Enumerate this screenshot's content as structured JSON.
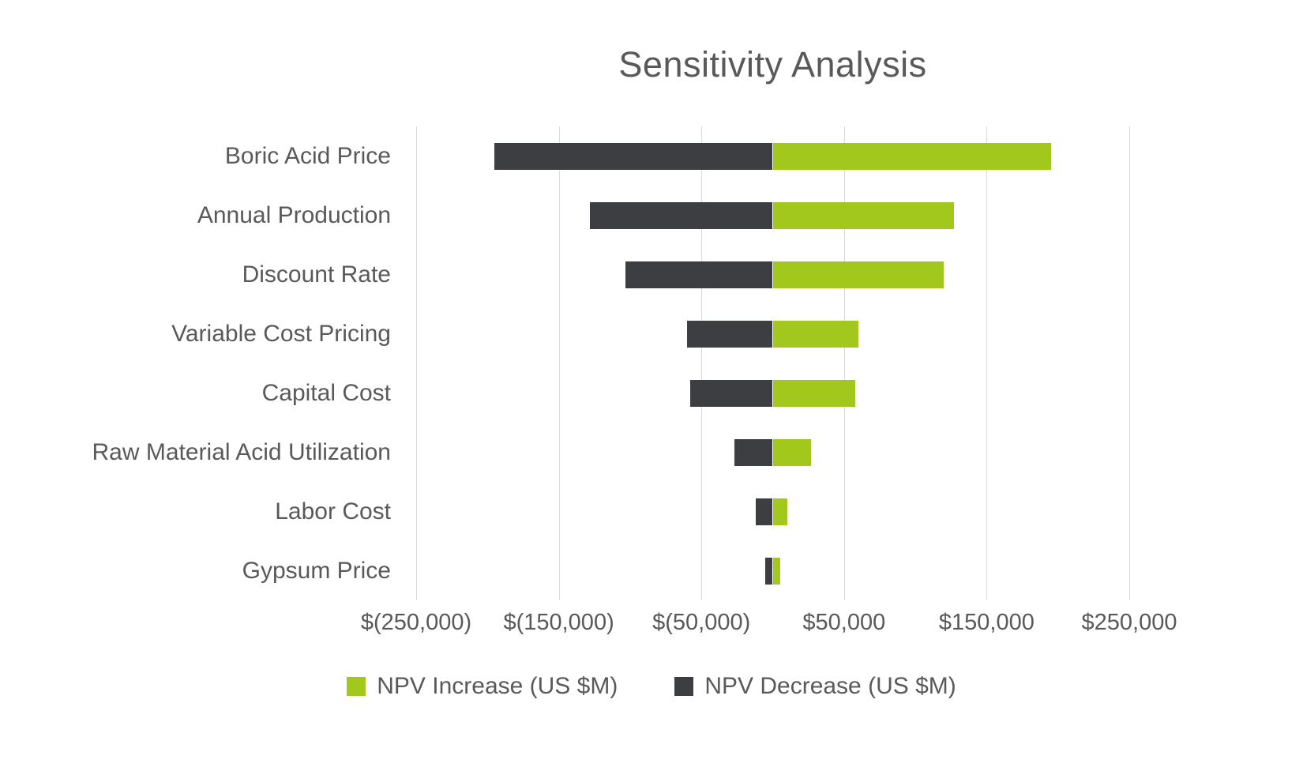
{
  "colors": {
    "increase": "#A2C81E",
    "decrease": "#3C3E42",
    "gridline": "#D9D9D9",
    "text": "#595959",
    "background": "#FFFFFF"
  },
  "legend": {
    "increase_label": "NPV Increase (US $M)",
    "decrease_label": "NPV Decrease (US $M)"
  },
  "chart_data": {
    "type": "bar",
    "orientation": "horizontal",
    "subtype": "tornado-diverging",
    "title": "Sensitivity Analysis",
    "xlabel": "",
    "ylabel": "",
    "grid": true,
    "legend_position": "bottom",
    "categories": [
      "Boric Acid Price",
      "Annual Production",
      "Discount Rate",
      "Variable Cost Pricing",
      "Capital Cost",
      "Raw Material Acid Utilization",
      "Labor Cost",
      "Gypsum Price"
    ],
    "series": [
      {
        "name": "NPV Increase (US $M)",
        "color": "#A2C81E",
        "values": [
          195000,
          127000,
          120000,
          60000,
          58000,
          27000,
          10000,
          5000
        ]
      },
      {
        "name": "NPV Decrease (US $M)",
        "color": "#3C3E42",
        "values": [
          -195000,
          -128000,
          -103000,
          -60000,
          -58000,
          -27000,
          -12000,
          -5000
        ]
      }
    ],
    "x_axis": {
      "min": -250000,
      "max": 250000,
      "tick_interval": 100000,
      "ticks": [
        {
          "value": -250000,
          "label": "$(250,000)"
        },
        {
          "value": -150000,
          "label": "$(150,000)"
        },
        {
          "value": -50000,
          "label": "$(50,000)"
        },
        {
          "value": 50000,
          "label": "$50,000"
        },
        {
          "value": 150000,
          "label": "$150,000"
        },
        {
          "value": 250000,
          "label": "$250,000"
        }
      ]
    }
  }
}
